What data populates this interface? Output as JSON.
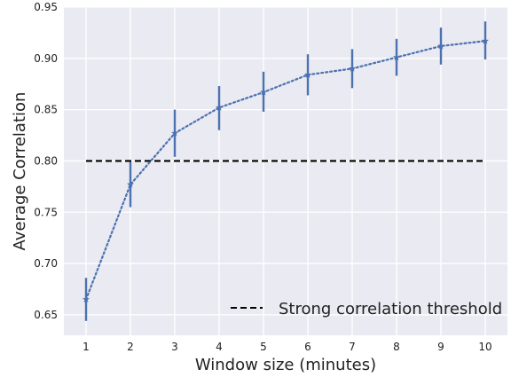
{
  "chart_data": {
    "type": "line",
    "xlabel": "Window size (minutes)",
    "ylabel": "Average Correlation",
    "xlim": [
      0.5,
      10.5
    ],
    "ylim": [
      0.63,
      0.95
    ],
    "x_ticks": [
      1,
      2,
      3,
      4,
      5,
      6,
      7,
      8,
      9,
      10
    ],
    "y_ticks": [
      0.65,
      0.7,
      0.75,
      0.8,
      0.85,
      0.9,
      0.95
    ],
    "y_tick_labels": [
      "0.65",
      "0.70",
      "0.75",
      "0.80",
      "0.85",
      "0.90",
      "0.95"
    ],
    "grid": true,
    "background_color": "#eaeaf2",
    "grid_color": "#ffffff",
    "series": [
      {
        "x": [
          1,
          2,
          3,
          4,
          5,
          6,
          7,
          8,
          9,
          10
        ],
        "values": [
          0.665,
          0.777,
          0.827,
          0.852,
          0.867,
          0.884,
          0.89,
          0.901,
          0.912,
          0.917
        ],
        "error_low": [
          0.644,
          0.755,
          0.804,
          0.83,
          0.848,
          0.864,
          0.871,
          0.883,
          0.894,
          0.899
        ],
        "error_high": [
          0.686,
          0.799,
          0.85,
          0.873,
          0.887,
          0.904,
          0.909,
          0.919,
          0.93,
          0.936
        ],
        "color": "#4c72b0",
        "line_style": "dotted",
        "marker": "star"
      }
    ],
    "reference_line": {
      "name": "Strong correlation threshold",
      "y": 0.8,
      "x_range": [
        1,
        10
      ],
      "color": "#000000",
      "line_style": "dashed"
    },
    "legend_position": "bottom-right"
  }
}
